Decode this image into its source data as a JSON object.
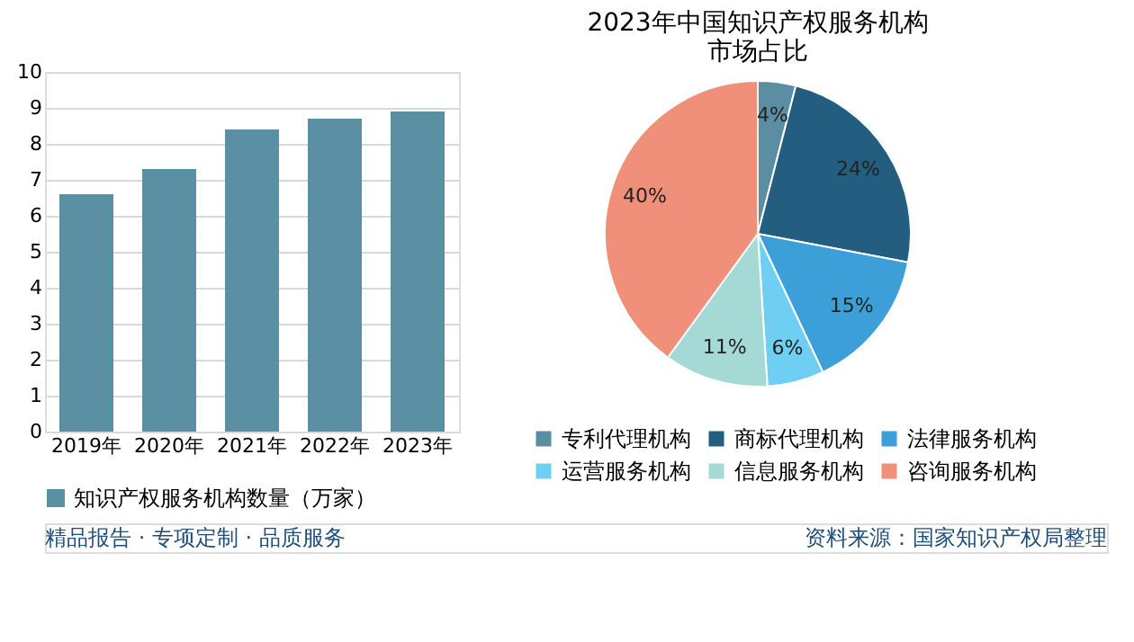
{
  "chart_data": [
    {
      "type": "bar",
      "categories": [
        "2019年",
        "2020年",
        "2021年",
        "2022年",
        "2023年"
      ],
      "series": [
        {
          "name": "知识产权服务机构数量（万家）",
          "color": "#5b8fa3",
          "values": [
            6.6,
            7.3,
            8.4,
            8.7,
            8.9
          ]
        }
      ],
      "ylim": [
        0,
        10
      ],
      "yticks": [
        0,
        1,
        2,
        3,
        4,
        5,
        6,
        7,
        8,
        9,
        10
      ],
      "grid": "y",
      "legend": "bottom"
    },
    {
      "type": "pie",
      "title": "2023年中国知识产权服务机构市场占比",
      "categories": [
        "专利代理机构",
        "商标代理机构",
        "法律服务机构",
        "运营服务机构",
        "信息服务机构",
        "咨询服务机构"
      ],
      "values": [
        4,
        24,
        15,
        6,
        11,
        40
      ],
      "value_labels": [
        "4%",
        "24%",
        "15%",
        "6%",
        "11%",
        "40%"
      ],
      "colors": [
        "#5b8ea3",
        "#235d80",
        "#3d9fd8",
        "#6fcff2",
        "#a4d9d6",
        "#f0907a"
      ],
      "legend": "bottom",
      "annotations": [
        "精品报告 · 专项定制 · 品质服务",
        "资料来源：国家知识产权局整理"
      ]
    }
  ]
}
